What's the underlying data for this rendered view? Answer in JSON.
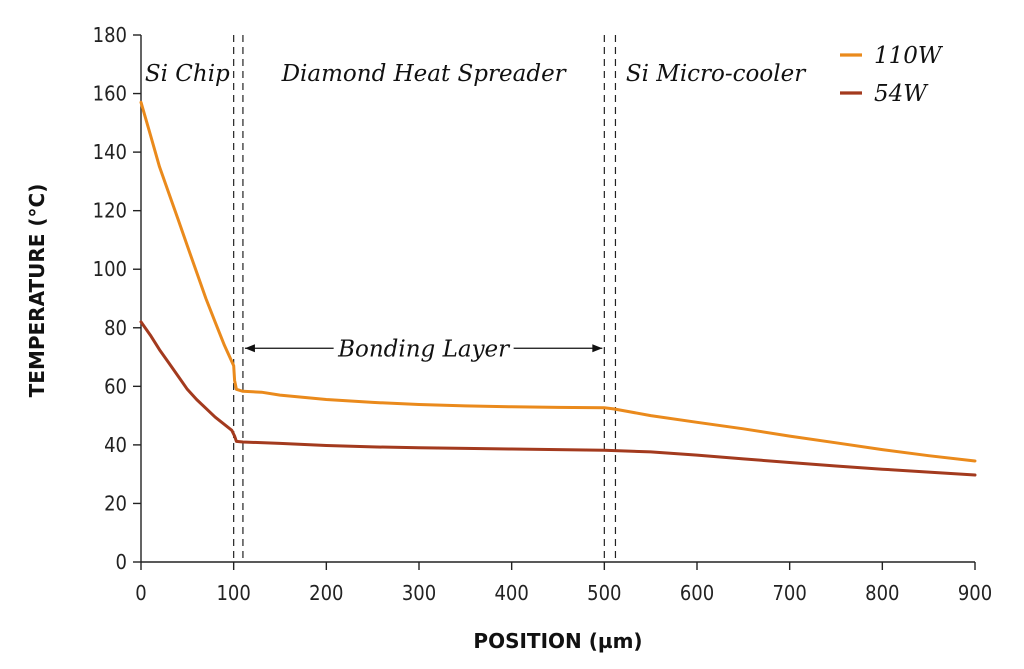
{
  "chart_data": {
    "type": "line",
    "xlabel": "POSITION (µm)",
    "ylabel": "TEMPERATURE (°C)",
    "xlim": [
      0,
      900
    ],
    "ylim": [
      0,
      180
    ],
    "xticks": [
      0,
      100,
      200,
      300,
      400,
      500,
      600,
      700,
      800,
      900
    ],
    "yticks": [
      0,
      20,
      40,
      60,
      80,
      100,
      120,
      140,
      160,
      180
    ],
    "grid": false,
    "legend_position": "top-right",
    "series": [
      {
        "name": "110W",
        "color": "#ea8a1c",
        "x": [
          0,
          10,
          20,
          30,
          40,
          50,
          60,
          70,
          80,
          90,
          100,
          101,
          103,
          110,
          130,
          150,
          200,
          250,
          300,
          350,
          400,
          450,
          500,
          510,
          550,
          600,
          650,
          700,
          750,
          800,
          850,
          900
        ],
        "y": [
          157,
          146,
          135,
          126,
          117,
          108,
          99,
          90,
          82,
          74,
          67,
          62,
          59,
          58.3,
          58,
          57,
          55.5,
          54.5,
          53.8,
          53.3,
          53,
          52.8,
          52.7,
          52.3,
          50,
          47.7,
          45.5,
          43,
          40.7,
          38.4,
          36.3,
          34.5
        ]
      },
      {
        "name": "54W",
        "color": "#a33a1e",
        "x": [
          0,
          10,
          20,
          30,
          40,
          50,
          60,
          70,
          80,
          90,
          98,
          101,
          103,
          110,
          150,
          200,
          250,
          300,
          350,
          400,
          450,
          500,
          550,
          600,
          650,
          700,
          750,
          800,
          850,
          900
        ],
        "y": [
          82,
          77.5,
          72.5,
          68,
          63.5,
          59,
          55.5,
          52.5,
          49.5,
          47,
          45,
          43,
          41.2,
          41,
          40.5,
          39.8,
          39.3,
          39,
          38.8,
          38.6,
          38.4,
          38.2,
          37.6,
          36.5,
          35.2,
          34,
          32.8,
          31.7,
          30.7,
          29.7
        ]
      }
    ],
    "boundaries": [
      100,
      110,
      500,
      512
    ],
    "regions": [
      {
        "label": "Si Chip",
        "x_center": 50,
        "y": 167
      },
      {
        "label": "Diamond Heat Spreader",
        "x_center": 305,
        "y": 167
      },
      {
        "label": "Si Micro-cooler",
        "x_center": 620,
        "y": 167
      }
    ],
    "annotation": {
      "label": "Bonding Layer",
      "x_from": 110,
      "x_to": 500,
      "y": 73
    }
  }
}
